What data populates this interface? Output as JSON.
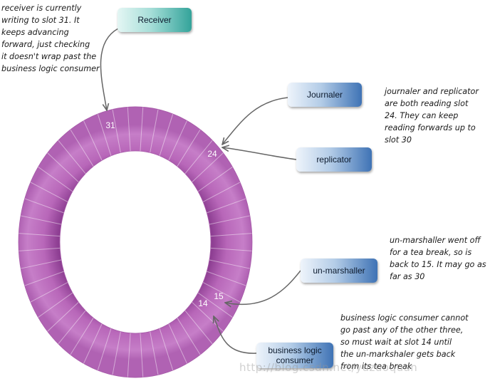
{
  "slots": {
    "s31": "31",
    "s24": "24",
    "s15": "15",
    "s14": "14"
  },
  "boxes": {
    "receiver": "Receiver",
    "journaler": "Journaler",
    "replicator": "replicator",
    "unmarshaller": "un-marshaller",
    "business_line1": "business logic",
    "business_line2": "consumer"
  },
  "notes": {
    "receiver": [
      "receiver is currently",
      "writing to slot 31. It",
      "keeps advancing",
      "forward, just checking",
      "it doesn't wrap past the",
      "business logic consumer"
    ],
    "journaler": [
      "journaler and replicator",
      "are both reading slot",
      "24. They can keep",
      "reading forwards up to",
      "slot 30"
    ],
    "unmarshaller": [
      "un-marshaller went off",
      "for a tea break, so is",
      "back to 15. It may go as",
      "far as 30"
    ],
    "business": [
      "business logic consumer cannot",
      "go past any of the other three,",
      "so must wait at slot 14 until",
      "the un-markshaler gets back",
      "from its tea break"
    ]
  },
  "watermark": "http://blog.csdn.net/yuzuoquan",
  "colors": {
    "ring": "#c06fc0",
    "ring_dark": "#9a4f9c",
    "teal": "#33a39a",
    "blue": "#3f73b5",
    "arrow": "#666666"
  }
}
